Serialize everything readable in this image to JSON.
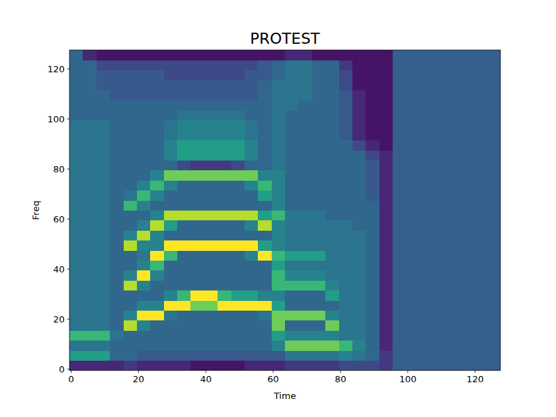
{
  "chart_data": {
    "type": "heatmap",
    "title": "PROTEST",
    "x_label": "Time",
    "y_label": "Freq",
    "xlim": [
      -0.5,
      127.5
    ],
    "ylim": [
      -0.5,
      127.5
    ],
    "xticks": [
      0,
      20,
      40,
      60,
      80,
      100,
      120
    ],
    "yticks": [
      0,
      20,
      40,
      60,
      80,
      100,
      120
    ],
    "grid": false,
    "zlim": [
      0,
      9
    ],
    "x_edges": [
      -0.5,
      3.5,
      7.5,
      11.5,
      15.5,
      19.5,
      23.5,
      27.5,
      31.5,
      35.5,
      39.5,
      43.5,
      47.5,
      51.5,
      55.5,
      59.5,
      63.5,
      67.5,
      71.5,
      75.5,
      79.5,
      83.5,
      87.5,
      91.5,
      95.5,
      99.5,
      103.5,
      107.5,
      111.5,
      115.5,
      119.5,
      123.5,
      127.5
    ],
    "y_edges": [
      -0.5,
      3.5,
      7.5,
      11.5,
      15.5,
      19.5,
      23.5,
      27.5,
      31.5,
      35.5,
      39.5,
      43.5,
      47.5,
      51.5,
      55.5,
      59.5,
      63.5,
      67.5,
      71.5,
      75.5,
      79.5,
      83.5,
      87.5,
      91.5,
      95.5,
      99.5,
      103.5,
      107.5,
      111.5,
      115.5,
      119.5,
      123.5,
      127.5
    ],
    "cells": [
      [
        1,
        1,
        1,
        1,
        1.5,
        1,
        1,
        1,
        1,
        0.5,
        0.5,
        0.5,
        0.5,
        1,
        1,
        1,
        1.5,
        1.5,
        1.5,
        1.5,
        2,
        2,
        2,
        1.5,
        2.7,
        2.7,
        2.7,
        2.7,
        2.7,
        2.7,
        2.7,
        2.7
      ],
      [
        5,
        5,
        5,
        3,
        3,
        2.5,
        2.5,
        2.5,
        2.5,
        2.5,
        2.5,
        2.5,
        2.5,
        2.5,
        2.5,
        2.5,
        3.5,
        3.5,
        3.5,
        3.5,
        4,
        3.5,
        3,
        1.5,
        2.7,
        2.7,
        2.7,
        2.7,
        2.7,
        2.7,
        2.7,
        2.7
      ],
      [
        3.5,
        3.5,
        3.5,
        3,
        3,
        3,
        3,
        3,
        3,
        3,
        3,
        3,
        3,
        3,
        3,
        4,
        7,
        7,
        7,
        7,
        6,
        4,
        3,
        1,
        2.7,
        2.7,
        2.7,
        2.7,
        2.7,
        2.7,
        2.7,
        2.7
      ],
      [
        6,
        6,
        6,
        3.5,
        3,
        3,
        3,
        3,
        3,
        3,
        3,
        3,
        3,
        3,
        3,
        5,
        4,
        4,
        4,
        4,
        3.5,
        3.5,
        3,
        1,
        2.7,
        2.7,
        2.7,
        2.7,
        2.7,
        2.7,
        2.7,
        2.7
      ],
      [
        3.5,
        3.5,
        3.5,
        3,
        8,
        4,
        3,
        3,
        3,
        3,
        3,
        3,
        3,
        3,
        3,
        7,
        3,
        3,
        3,
        7,
        3.5,
        3.5,
        3,
        1,
        2.7,
        2.7,
        2.7,
        2.7,
        2.7,
        2.7,
        2.7,
        2.7
      ],
      [
        3.5,
        3.5,
        3.5,
        3,
        4,
        9,
        9,
        3.5,
        3,
        3,
        3,
        3,
        3,
        3,
        3.5,
        7,
        7,
        7,
        7,
        4,
        3.5,
        3.5,
        3,
        1,
        2.7,
        2.7,
        2.7,
        2.7,
        2.7,
        2.7,
        2.7,
        2.7
      ],
      [
        3.5,
        3.5,
        3.5,
        3,
        3,
        4,
        4,
        9,
        9,
        7,
        7,
        9,
        9,
        9,
        9,
        5,
        3,
        3,
        3,
        3,
        3.5,
        3.5,
        3,
        1,
        2.7,
        2.7,
        2.7,
        2.7,
        2.7,
        2.7,
        2.7,
        2.7
      ],
      [
        3.5,
        3.5,
        3.5,
        3,
        3,
        3,
        3,
        4,
        6,
        9,
        9,
        6,
        5,
        5,
        4,
        4,
        3,
        3,
        3,
        5,
        3.5,
        3.5,
        3,
        1,
        2.7,
        2.7,
        2.7,
        2.7,
        2.7,
        2.7,
        2.7,
        2.7
      ],
      [
        3.5,
        3.5,
        3.5,
        3,
        8,
        4,
        3,
        3,
        3,
        3,
        3,
        3,
        3,
        3,
        3,
        6,
        6,
        6,
        6,
        4,
        3.5,
        3.5,
        3,
        1,
        2.7,
        2.7,
        2.7,
        2.7,
        2.7,
        2.7,
        2.7,
        2.7
      ],
      [
        3.5,
        3.5,
        3.5,
        3,
        4,
        9,
        4,
        3,
        3,
        3,
        3,
        3,
        3,
        3,
        3,
        6,
        4,
        4,
        4,
        3.5,
        3.5,
        3.5,
        3,
        1,
        2.7,
        2.7,
        2.7,
        2.7,
        2.7,
        2.7,
        2.7,
        2.7
      ],
      [
        3.5,
        3.5,
        3.5,
        3,
        3,
        4,
        6,
        3,
        3,
        3,
        3,
        3,
        3,
        3,
        3,
        5,
        3.5,
        3.5,
        3.5,
        3.5,
        3.5,
        3.5,
        3,
        1,
        2.7,
        2.7,
        2.7,
        2.7,
        2.7,
        2.7,
        2.7,
        2.7
      ],
      [
        3.5,
        3.5,
        3.5,
        3,
        3,
        3.5,
        9,
        6,
        3,
        3,
        3,
        3,
        3,
        4,
        9,
        6,
        5,
        5,
        5,
        3.5,
        3.5,
        3.5,
        3,
        1,
        2.7,
        2.7,
        2.7,
        2.7,
        2.7,
        2.7,
        2.7,
        2.7
      ],
      [
        3.5,
        3.5,
        3.5,
        3,
        8,
        4,
        4,
        9,
        9,
        9,
        9,
        9,
        9,
        9,
        5,
        4,
        3.5,
        3.5,
        3.5,
        3.5,
        3.5,
        3.5,
        3,
        1,
        2.7,
        2.7,
        2.7,
        2.7,
        2.7,
        2.7,
        2.7,
        2.7
      ],
      [
        3.5,
        3.5,
        3.5,
        3,
        4,
        8,
        4,
        3,
        3,
        3,
        3,
        3,
        3,
        3,
        3,
        4,
        3.5,
        3.5,
        3.5,
        3.5,
        3.5,
        3.5,
        3,
        1,
        2.7,
        2.7,
        2.7,
        2.7,
        2.7,
        2.7,
        2.7,
        2.7
      ],
      [
        3.5,
        3.5,
        3.5,
        3,
        3,
        4,
        8,
        5,
        3,
        3,
        3,
        3,
        3,
        4,
        8,
        4,
        3.5,
        3.5,
        3.5,
        3.5,
        3.5,
        3,
        3,
        1,
        2.7,
        2.7,
        2.7,
        2.7,
        2.7,
        2.7,
        2.7,
        2.7
      ],
      [
        3.5,
        3.5,
        3.5,
        3,
        3,
        3,
        4,
        8,
        8,
        8,
        8,
        8,
        8,
        8,
        5,
        6,
        3.5,
        3.5,
        3.5,
        3,
        3,
        3,
        3,
        1,
        2.7,
        2.7,
        2.7,
        2.7,
        2.7,
        2.7,
        2.7,
        2.7
      ],
      [
        3.5,
        3.5,
        3.5,
        3,
        6,
        4,
        3,
        3,
        3,
        3,
        3,
        3,
        3,
        3,
        3,
        4,
        3,
        3,
        3,
        3,
        3,
        3,
        3,
        1,
        2.7,
        2.7,
        2.7,
        2.7,
        2.7,
        2.7,
        2.7,
        2.7
      ],
      [
        3.5,
        3.5,
        3.5,
        3,
        3.5,
        6,
        4,
        3,
        3,
        3,
        3,
        3,
        3,
        3,
        5,
        4,
        3,
        3,
        3,
        3,
        3,
        3,
        2.5,
        1,
        2.7,
        2.7,
        2.7,
        2.7,
        2.7,
        2.7,
        2.7,
        2.7
      ],
      [
        3.5,
        3.5,
        3.5,
        3,
        3,
        4,
        6,
        4,
        3,
        3,
        3,
        3,
        3,
        4,
        6,
        4,
        3,
        3,
        3,
        3,
        3,
        3,
        2.5,
        1,
        2.7,
        2.7,
        2.7,
        2.7,
        2.7,
        2.7,
        2.7,
        2.7
      ],
      [
        3.5,
        3.5,
        3.5,
        3,
        3,
        3,
        4,
        7,
        7,
        7,
        7,
        7,
        7,
        7,
        4,
        4,
        3,
        3,
        3,
        3,
        3,
        3,
        2.5,
        1,
        2.7,
        2.7,
        2.7,
        2.7,
        2.7,
        2.7,
        2.7,
        2.7
      ],
      [
        3.5,
        3.5,
        3.5,
        3,
        3,
        3,
        3,
        3,
        2,
        1.5,
        1.5,
        1.5,
        2,
        3,
        3,
        3.5,
        3,
        3,
        3,
        3,
        3,
        3,
        2.5,
        1,
        2.7,
        2.7,
        2.7,
        2.7,
        2.7,
        2.7,
        2.7,
        2.7
      ],
      [
        3.5,
        3.5,
        3.5,
        3,
        3,
        3,
        3,
        4,
        5,
        5,
        5,
        5,
        5,
        4,
        3,
        3.5,
        3,
        3,
        3,
        3,
        3,
        3,
        2,
        1,
        2.7,
        2.7,
        2.7,
        2.7,
        2.7,
        2.7,
        2.7,
        2.7
      ],
      [
        3.5,
        3.5,
        3.5,
        3,
        3,
        3,
        3,
        4,
        5,
        5,
        5,
        5,
        5,
        4,
        3,
        3.5,
        3,
        3,
        3,
        3,
        3,
        2,
        1,
        0.5,
        2.7,
        2.7,
        2.7,
        2.7,
        2.7,
        2.7,
        2.7,
        2.7
      ],
      [
        3.5,
        3.5,
        3.5,
        3,
        3,
        3,
        3,
        3.5,
        4,
        4,
        4,
        4,
        4,
        3.5,
        3,
        3.5,
        3,
        3,
        3,
        3,
        2.5,
        1,
        0.5,
        0.5,
        2.7,
        2.7,
        2.7,
        2.7,
        2.7,
        2.7,
        2.7,
        2.7
      ],
      [
        3.5,
        3.5,
        3.5,
        3,
        3,
        3,
        3,
        3.5,
        4,
        4,
        4,
        4,
        4,
        3.5,
        3,
        3.5,
        3,
        3,
        3,
        3,
        2.5,
        1,
        0.5,
        0.5,
        2.7,
        2.7,
        2.7,
        2.7,
        2.7,
        2.7,
        2.7,
        2.7
      ],
      [
        3,
        3,
        3,
        3,
        3,
        3,
        3,
        3,
        3.5,
        3.5,
        3.5,
        3.5,
        3.5,
        3,
        3,
        3.5,
        3,
        3,
        3,
        3,
        2.5,
        1,
        0.5,
        0.5,
        2.7,
        2.7,
        2.7,
        2.7,
        2.7,
        2.7,
        2.7,
        2.7
      ],
      [
        3,
        3,
        3,
        3,
        3,
        3,
        3,
        3,
        3,
        3,
        3,
        3,
        3,
        3,
        3,
        3.5,
        3.5,
        3,
        3,
        3,
        2.5,
        1,
        0.5,
        0.5,
        2.7,
        2.7,
        2.7,
        2.7,
        2.7,
        2.7,
        2.7,
        2.7
      ],
      [
        3,
        3,
        3,
        2.5,
        2.5,
        2.5,
        2.5,
        2.5,
        2.5,
        2.5,
        2.5,
        2.5,
        2.5,
        2.5,
        3,
        3.5,
        3.5,
        3.5,
        3,
        3,
        2.5,
        1,
        0.5,
        0.5,
        2.7,
        2.7,
        2.7,
        2.7,
        2.7,
        2.7,
        2.7,
        2.7
      ],
      [
        3,
        3,
        2.5,
        2.5,
        2.5,
        2.5,
        2.5,
        2.5,
        2.5,
        2.5,
        2.5,
        2.5,
        2.5,
        2.5,
        3,
        3.5,
        3.5,
        3.5,
        3,
        3,
        2,
        0.5,
        0.5,
        0.5,
        2.7,
        2.7,
        2.7,
        2.7,
        2.7,
        2.7,
        2.7,
        2.7
      ],
      [
        3,
        3,
        2.5,
        2.5,
        2.5,
        2.5,
        2.5,
        2,
        2,
        2,
        2,
        2,
        2,
        2.5,
        2.5,
        3,
        3.5,
        3.5,
        3,
        3,
        2,
        0.5,
        0.5,
        0.5,
        2.7,
        2.7,
        2.7,
        2.7,
        2.7,
        2.7,
        2.7,
        2.7
      ],
      [
        3,
        3,
        2,
        2,
        2,
        2,
        2,
        2,
        2,
        2,
        2,
        2,
        2,
        2,
        2.5,
        3,
        3.5,
        3.5,
        3,
        3,
        1.5,
        0.5,
        0.5,
        0.5,
        2.7,
        2.7,
        2.7,
        2.7,
        2.7,
        2.7,
        2.7,
        2.7
      ],
      [
        3,
        1,
        0.5,
        0.5,
        0.5,
        0.5,
        0.5,
        0.5,
        0.5,
        0.5,
        0.5,
        0.5,
        0.5,
        0.5,
        0.5,
        0.5,
        1,
        1,
        0.5,
        0.5,
        0.5,
        0.5,
        0.5,
        0.5,
        2.7,
        2.7,
        2.7,
        2.7,
        2.7,
        2.7,
        2.7,
        2.7
      ]
    ]
  }
}
